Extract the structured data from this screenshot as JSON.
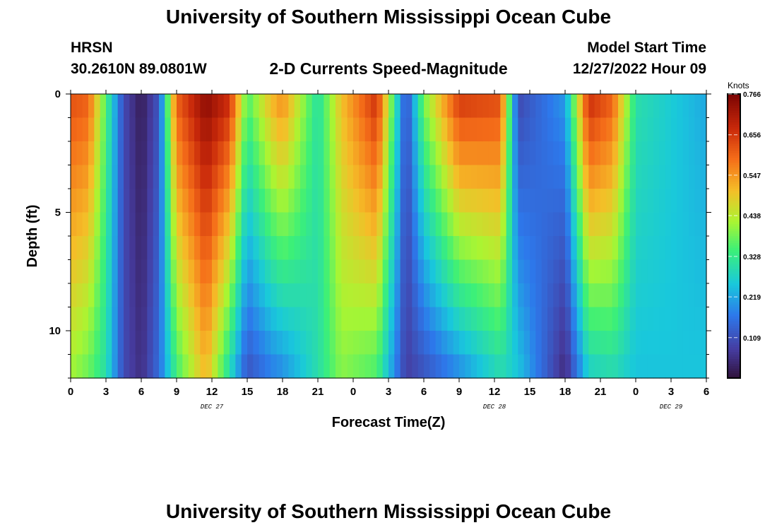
{
  "header": {
    "title": "University of Southern Mississippi Ocean Cube",
    "station": "HRSN",
    "coords": "30.2610N  89.0801W",
    "product": "2-D Currents Speed-Magnitude",
    "model_start_label": "Model Start Time",
    "model_start_value": "12/27/2022 Hour 09"
  },
  "footer": {
    "title": "University of Southern Mississippi Ocean Cube"
  },
  "chart_data": {
    "type": "heatmap",
    "title": "2-D Currents Speed-Magnitude",
    "xlabel": "Forecast Time(Z)",
    "ylabel": "Depth (ft)",
    "x_start_hour": 0,
    "x_end_hour": 54,
    "x_tick_labels": [
      "0",
      "3",
      "6",
      "9",
      "12",
      "15",
      "18",
      "21",
      "0",
      "3",
      "6",
      "9",
      "12",
      "15",
      "18",
      "21",
      "0",
      "3",
      "6"
    ],
    "day_labels": [
      {
        "label": "DEC 27",
        "hour": 12
      },
      {
        "label": "DEC 28",
        "hour": 36
      },
      {
        "label": "DEC 29",
        "hour": 51
      }
    ],
    "ylim": [
      0,
      12
    ],
    "y_tick_labels": [
      "0",
      "5",
      "10"
    ],
    "y_tick_values": [
      0,
      5,
      10
    ],
    "colorbar": {
      "label": "Knots",
      "min": 0,
      "max": 0.766,
      "tick_labels": [
        "0.766",
        "0.656",
        "0.547",
        "0.438",
        "0.328",
        "0.219",
        "0.109"
      ],
      "tick_values": [
        0.766,
        0.656,
        0.547,
        0.438,
        0.328,
        0.219,
        0.109
      ]
    },
    "depth_levels": 12,
    "time_step_hours": 0.5,
    "speed_profile_knots": [
      {
        "hour": 0,
        "surface": 0.62,
        "bottom": 0.42
      },
      {
        "hour": 1.5,
        "surface": 0.6,
        "bottom": 0.38
      },
      {
        "hour": 3,
        "surface": 0.35,
        "bottom": 0.3
      },
      {
        "hour": 4.5,
        "surface": 0.1,
        "bottom": 0.1
      },
      {
        "hour": 6,
        "surface": 0.02,
        "bottom": 0.05
      },
      {
        "hour": 7.5,
        "surface": 0.12,
        "bottom": 0.15
      },
      {
        "hour": 9,
        "surface": 0.6,
        "bottom": 0.35
      },
      {
        "hour": 11.5,
        "surface": 0.74,
        "bottom": 0.52
      },
      {
        "hour": 13.5,
        "surface": 0.66,
        "bottom": 0.3
      },
      {
        "hour": 15,
        "surface": 0.35,
        "bottom": 0.12
      },
      {
        "hour": 17,
        "surface": 0.5,
        "bottom": 0.18
      },
      {
        "hour": 18,
        "surface": 0.55,
        "bottom": 0.2
      },
      {
        "hour": 21,
        "surface": 0.3,
        "bottom": 0.3
      },
      {
        "hour": 23,
        "surface": 0.5,
        "bottom": 0.4
      },
      {
        "hour": 26,
        "surface": 0.66,
        "bottom": 0.36
      },
      {
        "hour": 28.5,
        "surface": 0.1,
        "bottom": 0.08
      },
      {
        "hour": 30,
        "surface": 0.38,
        "bottom": 0.12
      },
      {
        "hour": 33,
        "surface": 0.64,
        "bottom": 0.2
      },
      {
        "hour": 36.5,
        "surface": 0.62,
        "bottom": 0.3
      },
      {
        "hour": 38,
        "surface": 0.1,
        "bottom": 0.25
      },
      {
        "hour": 42,
        "surface": 0.2,
        "bottom": 0.05
      },
      {
        "hour": 44,
        "surface": 0.66,
        "bottom": 0.28
      },
      {
        "hour": 46,
        "surface": 0.6,
        "bottom": 0.3
      },
      {
        "hour": 48,
        "surface": 0.3,
        "bottom": 0.25
      },
      {
        "hour": 54,
        "surface": 0.22,
        "bottom": 0.25
      }
    ]
  }
}
